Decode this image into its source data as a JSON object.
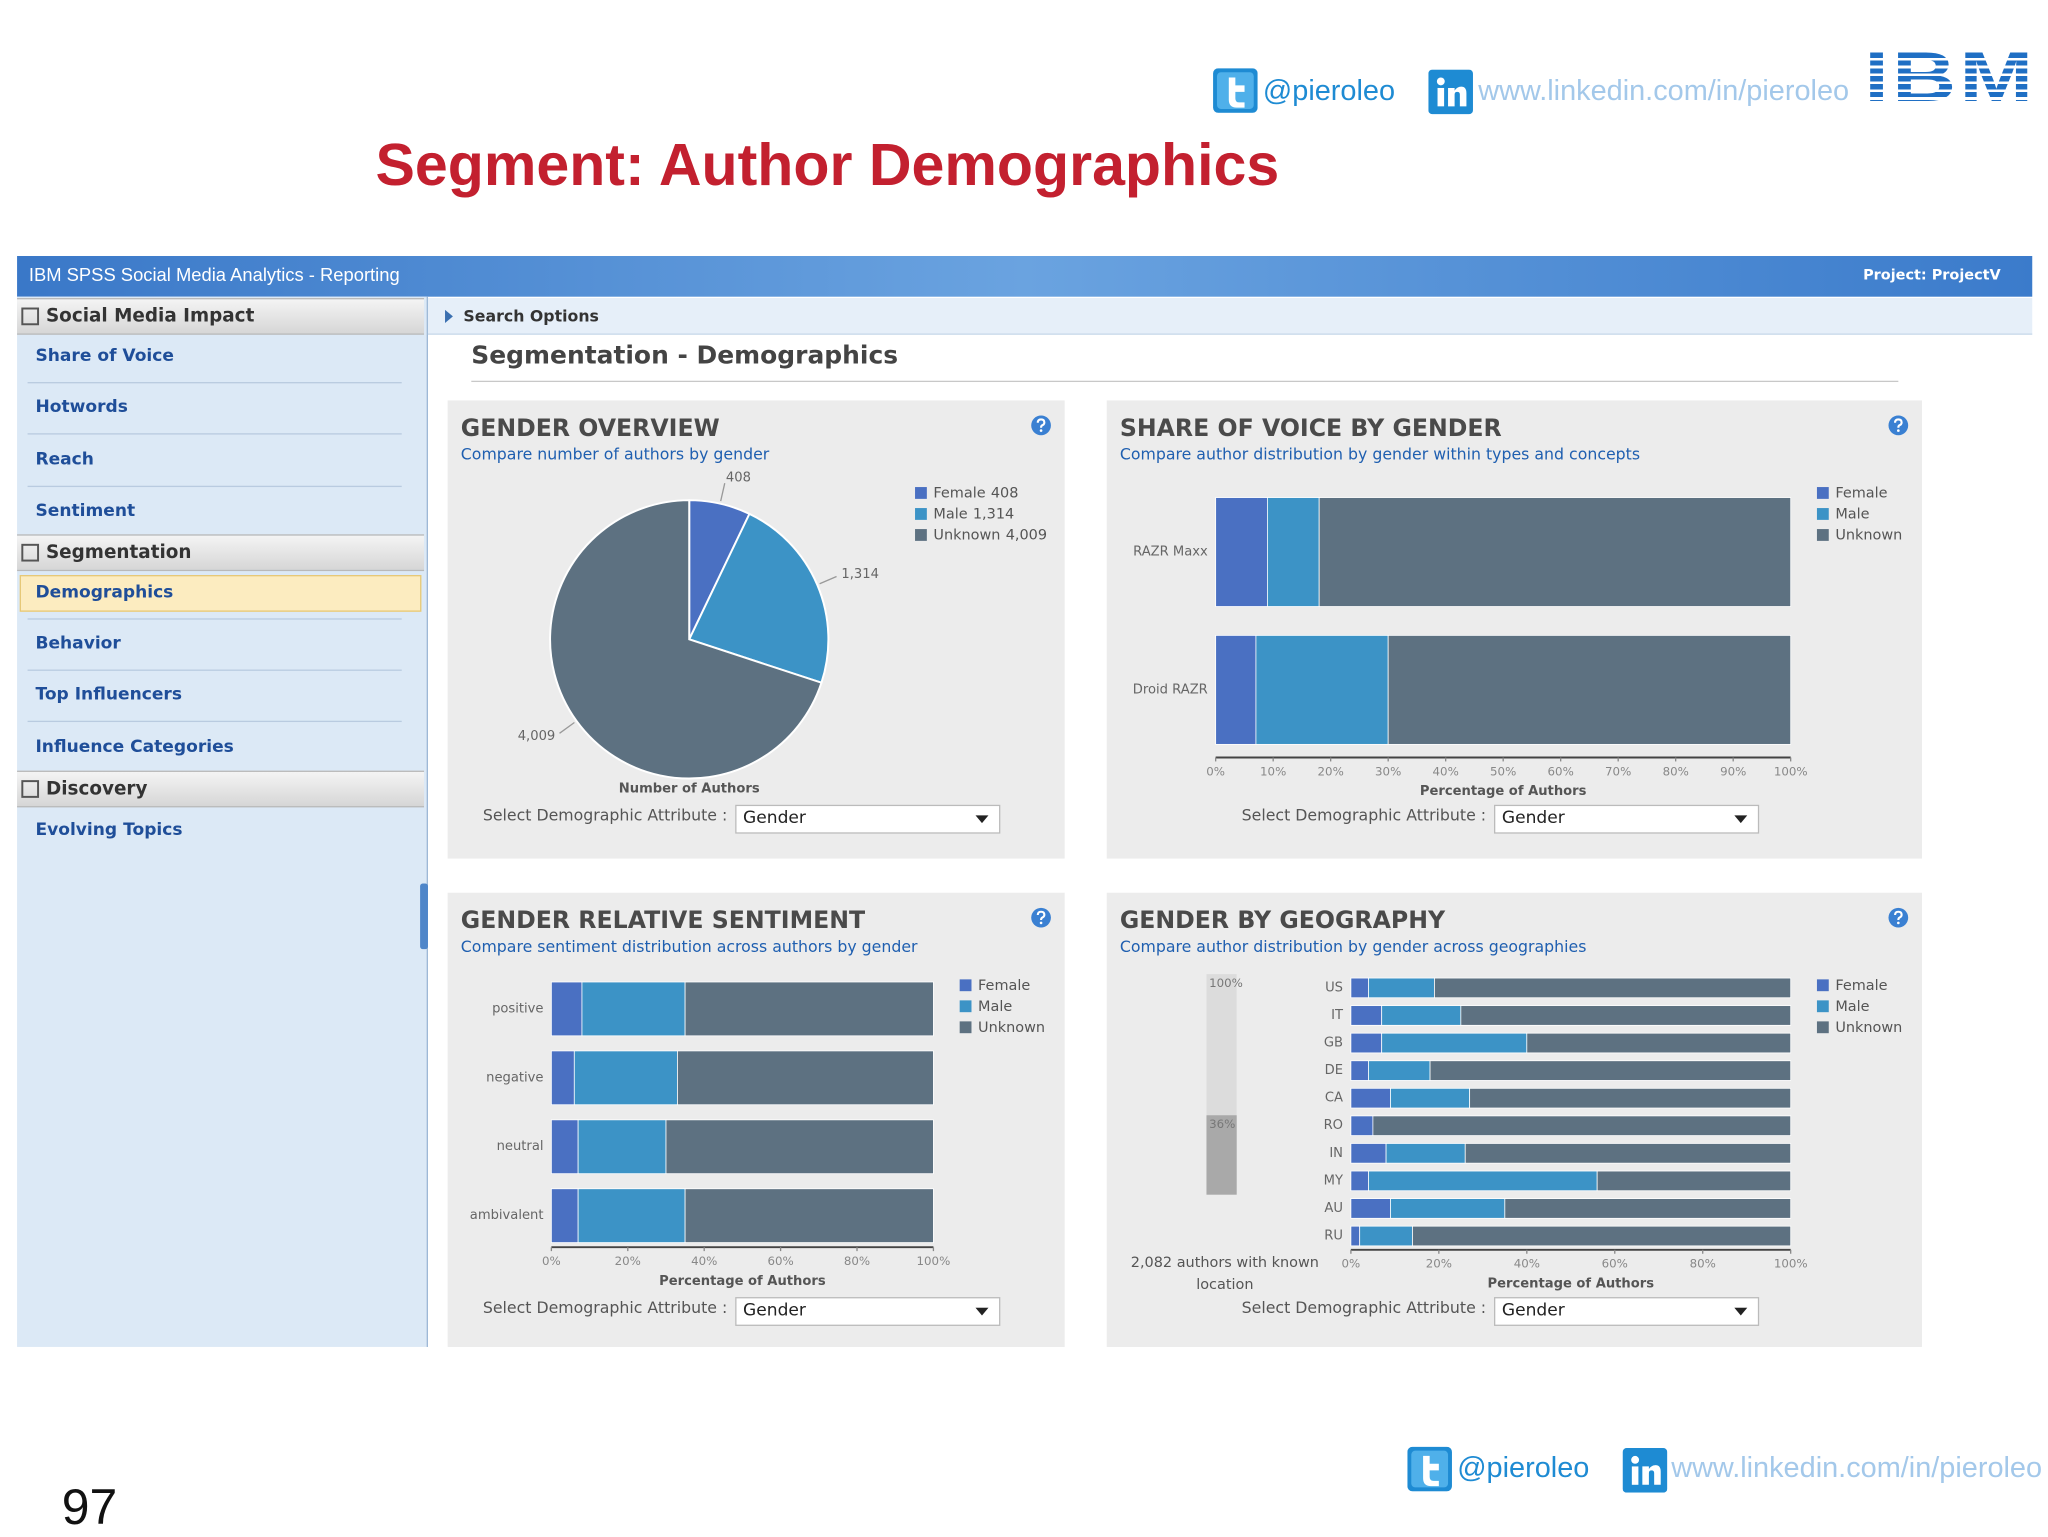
{
  "header": {
    "twitter": "@pieroleo",
    "linkedin": "www.linkedin.com/in/pieroleo",
    "logo": "IBM",
    "title": "Segment: Author Demographics"
  },
  "app": {
    "title": "IBM SPSS Social Media Analytics - Reporting",
    "project": "Project: ProjectV",
    "search_options": "Search Options",
    "heading": "Segmentation - Demographics"
  },
  "sidebar": [
    {
      "title": "Social Media Impact",
      "items": [
        "Share of Voice",
        "Hotwords",
        "Reach",
        "Sentiment"
      ]
    },
    {
      "title": "Segmentation",
      "items": [
        "Demographics",
        "Behavior",
        "Top Influencers",
        "Influence Categories"
      ]
    },
    {
      "title": "Discovery",
      "items": [
        "Evolving Topics"
      ]
    }
  ],
  "panels": [
    {
      "select_label": "Select Demographic Attribute :",
      "select_value": "Gender"
    },
    {
      "select_label": "Select Demographic Attribute :",
      "select_value": "Gender"
    },
    {
      "select_label": "Select Demographic Attribute :",
      "select_value": "Gender"
    },
    {
      "select_label": "Select Demographic Attribute :",
      "select_value": "Gender"
    }
  ],
  "chart_data": [
    {
      "type": "pie",
      "title": "GENDER OVERVIEW",
      "subtitle": "Compare number of authors by gender",
      "categories": [
        "Female",
        "Male",
        "Unknown"
      ],
      "values": [
        408,
        1314,
        4009
      ],
      "value_labels": [
        "408",
        "1,314",
        "4,009"
      ],
      "colors": [
        "#4a70c2",
        "#3c93c6",
        "#5d7181"
      ],
      "xlabel": "Number of Authors"
    },
    {
      "type": "stacked_hbar",
      "title": "SHARE OF VOICE BY GENDER",
      "subtitle": "Compare author distribution by gender within types and concepts",
      "categories": [
        "RAZR Maxx",
        "Droid RAZR"
      ],
      "series": [
        {
          "name": "Female",
          "color": "#4a70c2",
          "values": [
            9,
            7
          ]
        },
        {
          "name": "Male",
          "color": "#3c93c6",
          "values": [
            9,
            23
          ]
        },
        {
          "name": "Unknown",
          "color": "#5d7181",
          "values": [
            82,
            70
          ]
        }
      ],
      "xlim": [
        0,
        100
      ],
      "xticks": [
        {
          "value": 0,
          "label": "0%"
        },
        {
          "value": 10,
          "label": "10%"
        },
        {
          "value": 20,
          "label": "20%"
        },
        {
          "value": 30,
          "label": "30%"
        },
        {
          "value": 40,
          "label": "40%"
        },
        {
          "value": 50,
          "label": "50%"
        },
        {
          "value": 60,
          "label": "60%"
        },
        {
          "value": 70,
          "label": "70%"
        },
        {
          "value": 80,
          "label": "80%"
        },
        {
          "value": 90,
          "label": "90%"
        },
        {
          "value": 100,
          "label": "100%"
        }
      ],
      "xlabel": "Percentage of Authors"
    },
    {
      "type": "stacked_hbar",
      "title": "GENDER RELATIVE SENTIMENT",
      "subtitle": "Compare sentiment distribution across authors by gender",
      "categories": [
        "positive",
        "negative",
        "neutral",
        "ambivalent"
      ],
      "series": [
        {
          "name": "Female",
          "color": "#4a70c2",
          "values": [
            8,
            6,
            7,
            7
          ]
        },
        {
          "name": "Male",
          "color": "#3c93c6",
          "values": [
            27,
            27,
            23,
            28
          ]
        },
        {
          "name": "Unknown",
          "color": "#5d7181",
          "values": [
            65,
            67,
            70,
            65
          ]
        }
      ],
      "xlim": [
        0,
        100
      ],
      "xticks": [
        {
          "value": 0,
          "label": "0%"
        },
        {
          "value": 20,
          "label": "20%"
        },
        {
          "value": 40,
          "label": "40%"
        },
        {
          "value": 60,
          "label": "60%"
        },
        {
          "value": 80,
          "label": "80%"
        },
        {
          "value": 100,
          "label": "100%"
        }
      ],
      "xlabel": "Percentage of Authors"
    },
    {
      "type": "stacked_hbar",
      "title": "GENDER BY GEOGRAPHY",
      "subtitle": "Compare author distribution by gender across geographies",
      "categories": [
        "US",
        "IT",
        "GB",
        "DE",
        "CA",
        "RO",
        "IN",
        "MY",
        "AU",
        "RU"
      ],
      "series": [
        {
          "name": "Female",
          "color": "#4a70c2",
          "values": [
            4,
            7,
            7,
            4,
            9,
            5,
            8,
            4,
            9,
            2
          ]
        },
        {
          "name": "Male",
          "color": "#3c93c6",
          "values": [
            15,
            18,
            33,
            14,
            18,
            0,
            18,
            52,
            26,
            12
          ]
        },
        {
          "name": "Unknown",
          "color": "#5d7181",
          "values": [
            81,
            75,
            60,
            82,
            73,
            95,
            74,
            44,
            65,
            86
          ]
        }
      ],
      "xlim": [
        0,
        100
      ],
      "xticks": [
        {
          "value": 0,
          "label": "0%"
        },
        {
          "value": 20,
          "label": "20%"
        },
        {
          "value": 40,
          "label": "40%"
        },
        {
          "value": 60,
          "label": "60%"
        },
        {
          "value": 80,
          "label": "80%"
        },
        {
          "value": 100,
          "label": "100%"
        }
      ],
      "xlabel": "Percentage of Authors",
      "gauge": {
        "max": 100,
        "max_label": "100%",
        "value": 36,
        "value_label": "36%",
        "note": "2,082 authors with known location"
      }
    }
  ],
  "footer": {
    "twitter": "@pieroleo",
    "linkedin": "www.linkedin.com/in/pieroleo",
    "page_number": "97"
  }
}
